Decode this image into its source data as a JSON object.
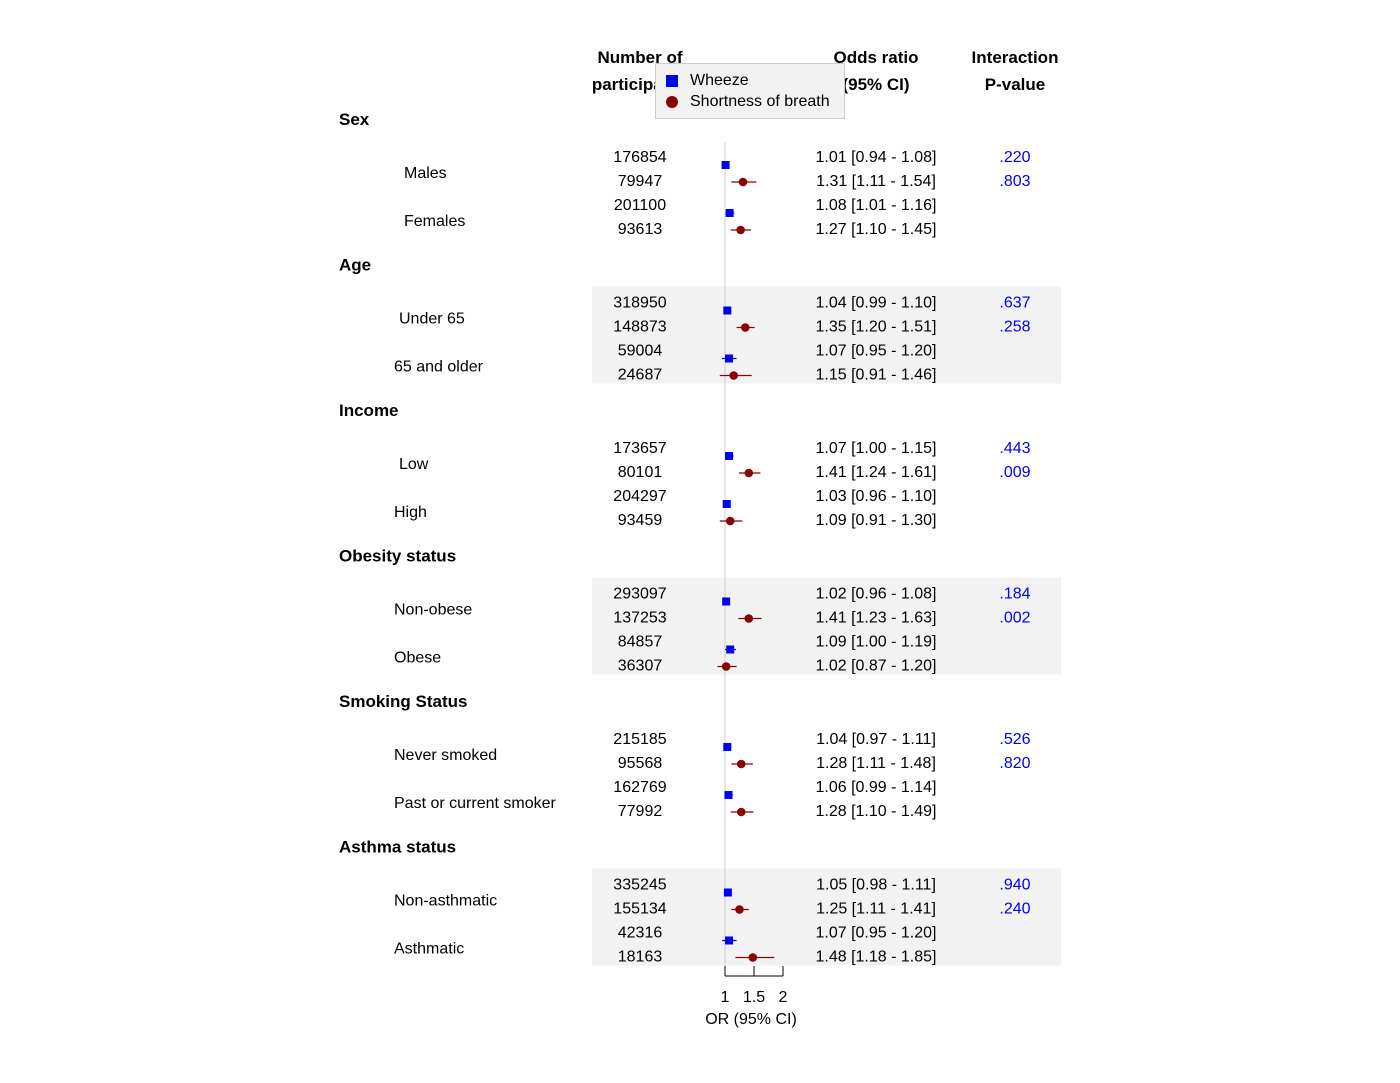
{
  "chart_data": {
    "type": "forest",
    "headers": {
      "participants": [
        "Number of",
        "participants"
      ],
      "or": [
        "Odds ratio",
        "(95% CI)"
      ],
      "interaction": [
        "Interaction",
        "P-value"
      ]
    },
    "xlabel": "OR (95% CI)",
    "xticks": [
      1,
      1.5,
      2
    ],
    "xlim": [
      1,
      2
    ],
    "reference_line": 1,
    "series": [
      {
        "name": "Wheeze",
        "marker": "square",
        "color": "#0000ee"
      },
      {
        "name": "Shortness of breath",
        "marker": "circle",
        "color": "#8b0000"
      }
    ],
    "groups": [
      {
        "name": "Sex",
        "shaded": false,
        "subgroups": [
          {
            "label": "Males",
            "rows": [
              {
                "series": "Wheeze",
                "n": "176854",
                "or": 1.01,
                "lo": 0.94,
                "hi": 1.08,
                "ci_text": "1.01 [0.94 - 1.08]",
                "p": ".220"
              },
              {
                "series": "Shortness of breath",
                "n": "79947",
                "or": 1.31,
                "lo": 1.11,
                "hi": 1.54,
                "ci_text": "1.31 [1.11 - 1.54]",
                "p": ".803"
              }
            ]
          },
          {
            "label": "Females",
            "rows": [
              {
                "series": "Wheeze",
                "n": "201100",
                "or": 1.08,
                "lo": 1.01,
                "hi": 1.16,
                "ci_text": "1.08 [1.01 - 1.16]",
                "p": ""
              },
              {
                "series": "Shortness of breath",
                "n": "93613",
                "or": 1.27,
                "lo": 1.1,
                "hi": 1.45,
                "ci_text": "1.27 [1.10 - 1.45]",
                "p": ""
              }
            ]
          }
        ]
      },
      {
        "name": "Age",
        "shaded": true,
        "subgroups": [
          {
            "label": "Under 65",
            "rows": [
              {
                "series": "Wheeze",
                "n": "318950",
                "or": 1.04,
                "lo": 0.99,
                "hi": 1.1,
                "ci_text": "1.04 [0.99 - 1.10]",
                "p": ".637"
              },
              {
                "series": "Shortness of breath",
                "n": "148873",
                "or": 1.35,
                "lo": 1.2,
                "hi": 1.51,
                "ci_text": "1.35 [1.20 - 1.51]",
                "p": ".258"
              }
            ]
          },
          {
            "label": "65 and older",
            "rows": [
              {
                "series": "Wheeze",
                "n": "59004",
                "or": 1.07,
                "lo": 0.95,
                "hi": 1.2,
                "ci_text": "1.07 [0.95 - 1.20]",
                "p": ""
              },
              {
                "series": "Shortness of breath",
                "n": "24687",
                "or": 1.15,
                "lo": 0.91,
                "hi": 1.46,
                "ci_text": "1.15 [0.91 - 1.46]",
                "p": ""
              }
            ]
          }
        ]
      },
      {
        "name": "Income",
        "shaded": false,
        "subgroups": [
          {
            "label": "Low",
            "rows": [
              {
                "series": "Wheeze",
                "n": "173657",
                "or": 1.07,
                "lo": 1.0,
                "hi": 1.15,
                "ci_text": "1.07 [1.00 - 1.15]",
                "p": ".443"
              },
              {
                "series": "Shortness of breath",
                "n": "80101",
                "or": 1.41,
                "lo": 1.24,
                "hi": 1.61,
                "ci_text": "1.41 [1.24 - 1.61]",
                "p": ".009"
              }
            ]
          },
          {
            "label": "High",
            "rows": [
              {
                "series": "Wheeze",
                "n": "204297",
                "or": 1.03,
                "lo": 0.96,
                "hi": 1.1,
                "ci_text": "1.03 [0.96 - 1.10]",
                "p": ""
              },
              {
                "series": "Shortness of breath",
                "n": "93459",
                "or": 1.09,
                "lo": 0.91,
                "hi": 1.3,
                "ci_text": "1.09 [0.91 - 1.30]",
                "p": ""
              }
            ]
          }
        ]
      },
      {
        "name": "Obesity status",
        "shaded": true,
        "subgroups": [
          {
            "label": "Non-obese",
            "rows": [
              {
                "series": "Wheeze",
                "n": "293097",
                "or": 1.02,
                "lo": 0.96,
                "hi": 1.08,
                "ci_text": "1.02 [0.96 - 1.08]",
                "p": ".184"
              },
              {
                "series": "Shortness of breath",
                "n": "137253",
                "or": 1.41,
                "lo": 1.23,
                "hi": 1.63,
                "ci_text": "1.41 [1.23 - 1.63]",
                "p": ".002"
              }
            ]
          },
          {
            "label": "Obese",
            "rows": [
              {
                "series": "Wheeze",
                "n": "84857",
                "or": 1.09,
                "lo": 1.0,
                "hi": 1.19,
                "ci_text": "1.09 [1.00 - 1.19]",
                "p": ""
              },
              {
                "series": "Shortness of breath",
                "n": "36307",
                "or": 1.02,
                "lo": 0.87,
                "hi": 1.2,
                "ci_text": "1.02 [0.87 - 1.20]",
                "p": ""
              }
            ]
          }
        ]
      },
      {
        "name": "Smoking Status",
        "shaded": false,
        "subgroups": [
          {
            "label": "Never smoked",
            "rows": [
              {
                "series": "Wheeze",
                "n": "215185",
                "or": 1.04,
                "lo": 0.97,
                "hi": 1.11,
                "ci_text": "1.04 [0.97 - 1.11]",
                "p": ".526"
              },
              {
                "series": "Shortness of breath",
                "n": "95568",
                "or": 1.28,
                "lo": 1.11,
                "hi": 1.48,
                "ci_text": "1.28 [1.11 - 1.48]",
                "p": ".820"
              }
            ]
          },
          {
            "label": "Past or current smoker",
            "rows": [
              {
                "series": "Wheeze",
                "n": "162769",
                "or": 1.06,
                "lo": 0.99,
                "hi": 1.14,
                "ci_text": "1.06 [0.99 - 1.14]",
                "p": ""
              },
              {
                "series": "Shortness of breath",
                "n": "77992",
                "or": 1.28,
                "lo": 1.1,
                "hi": 1.49,
                "ci_text": "1.28 [1.10 - 1.49]",
                "p": ""
              }
            ]
          }
        ]
      },
      {
        "name": "Asthma status",
        "shaded": true,
        "subgroups": [
          {
            "label": "Non-asthmatic",
            "rows": [
              {
                "series": "Wheeze",
                "n": "335245",
                "or": 1.05,
                "lo": 0.98,
                "hi": 1.11,
                "ci_text": "1.05 [0.98 - 1.11]",
                "p": ".940"
              },
              {
                "series": "Shortness of breath",
                "n": "155134",
                "or": 1.25,
                "lo": 1.11,
                "hi": 1.41,
                "ci_text": "1.25 [1.11 - 1.41]",
                "p": ".240"
              }
            ]
          },
          {
            "label": "Asthmatic",
            "rows": [
              {
                "series": "Wheeze",
                "n": "42316",
                "or": 1.07,
                "lo": 0.95,
                "hi": 1.2,
                "ci_text": "1.07 [0.95 - 1.20]",
                "p": ""
              },
              {
                "series": "Shortness of breath",
                "n": "18163",
                "or": 1.48,
                "lo": 1.18,
                "hi": 1.85,
                "ci_text": "1.48 [1.18 - 1.85]",
                "p": ""
              }
            ]
          }
        ]
      }
    ]
  }
}
